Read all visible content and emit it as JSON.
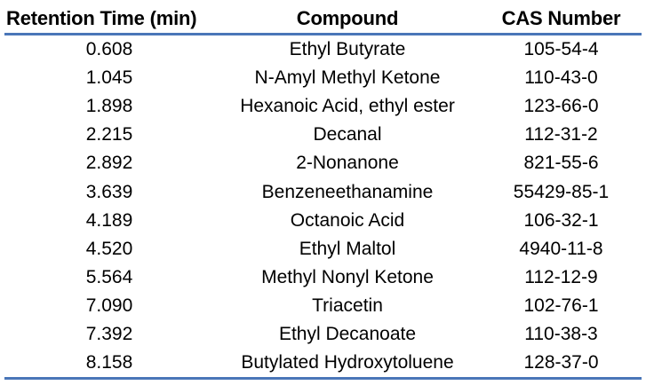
{
  "table": {
    "headers": [
      "Retention Time (min)",
      "Compound",
      "CAS Number"
    ],
    "rows": [
      [
        "0.608",
        "Ethyl Butyrate",
        "105-54-4"
      ],
      [
        "1.045",
        "N-Amyl Methyl Ketone",
        "110-43-0"
      ],
      [
        "1.898",
        "Hexanoic Acid, ethyl ester",
        "123-66-0"
      ],
      [
        "2.215",
        "Decanal",
        "112-31-2"
      ],
      [
        "2.892",
        "2-Nonanone",
        "821-55-6"
      ],
      [
        "3.639",
        "Benzeneethanamine",
        "55429-85-1"
      ],
      [
        "4.189",
        "Octanoic Acid",
        "106-32-1"
      ],
      [
        "4.520",
        "Ethyl Maltol",
        "4940-11-8"
      ],
      [
        "5.564",
        "Methyl Nonyl Ketone",
        "112-12-9"
      ],
      [
        "7.090",
        "Triacetin",
        "102-76-1"
      ],
      [
        "7.392",
        "Ethyl Decanoate",
        "110-38-3"
      ],
      [
        "8.158",
        "Butylated Hydroxytoluene",
        "128-37-0"
      ]
    ]
  },
  "colors": {
    "rule": "#4a76b8",
    "text": "#000000",
    "background": "#ffffff"
  }
}
